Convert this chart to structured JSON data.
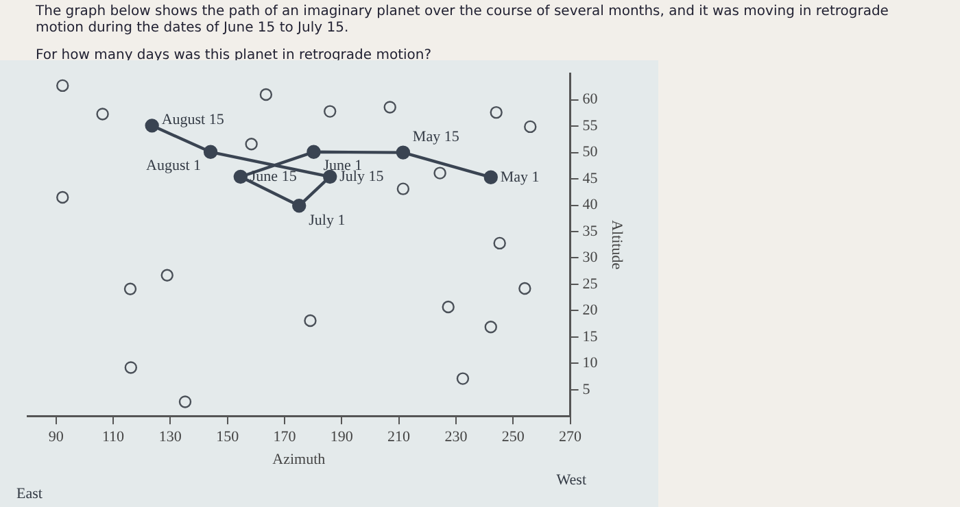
{
  "chart_data": {
    "type": "scatter",
    "title": "The graph below shows the path of an imaginary planet over the course of several months, and it was moving in retrograde motion during the dates of June 15 to July 15.",
    "subtitle": "For how many days was this planet in retrograde motion?",
    "xlabel": "Azimuth",
    "ylabel": "Altitude",
    "annotations": [
      "East",
      "West"
    ],
    "xlim": [
      80,
      270
    ],
    "xticks": [
      90,
      110,
      130,
      150,
      170,
      190,
      210,
      230,
      250,
      270
    ],
    "ylim": [
      0,
      65
    ],
    "yticks": [
      5,
      10,
      15,
      20,
      25,
      30,
      35,
      40,
      45,
      50,
      55,
      60
    ],
    "grid": false,
    "legend": false,
    "series": [
      {
        "color": "#4a5058",
        "marker": "circle",
        "x": [
          92.3,
          106.3,
          163.5,
          185.9,
          206.9,
          244.1,
          256.0,
          158.4,
          224.4,
          211.5,
          92.3,
          245.3,
          128.9,
          116.0,
          254.1,
          179.0,
          227.3,
          242.2,
          116.2,
          232.4,
          135.2
        ],
        "values": [
          62.7,
          57.3,
          61.0,
          57.8,
          58.6,
          57.6,
          54.9,
          51.6,
          46.1,
          43.1,
          41.5,
          32.8,
          26.7,
          24.1,
          24.2,
          18.1,
          20.7,
          16.9,
          9.2,
          7.1,
          2.7
        ]
      },
      {
        "type": "line",
        "color": "#3a4452",
        "marker": "circle",
        "line_style": "solid",
        "x": [
          242.2,
          211.5,
          180.2,
          154.6,
          175.1,
          185.9,
          144.1,
          123.6
        ],
        "values": [
          45.3,
          50.0,
          50.1,
          45.4,
          39.9,
          45.4,
          50.1,
          55.1
        ],
        "value_labels": [
          "May 1",
          "May 15",
          "June 1",
          "June 15",
          "July 1",
          "July 15",
          "August 1",
          "August 15"
        ]
      }
    ]
  }
}
